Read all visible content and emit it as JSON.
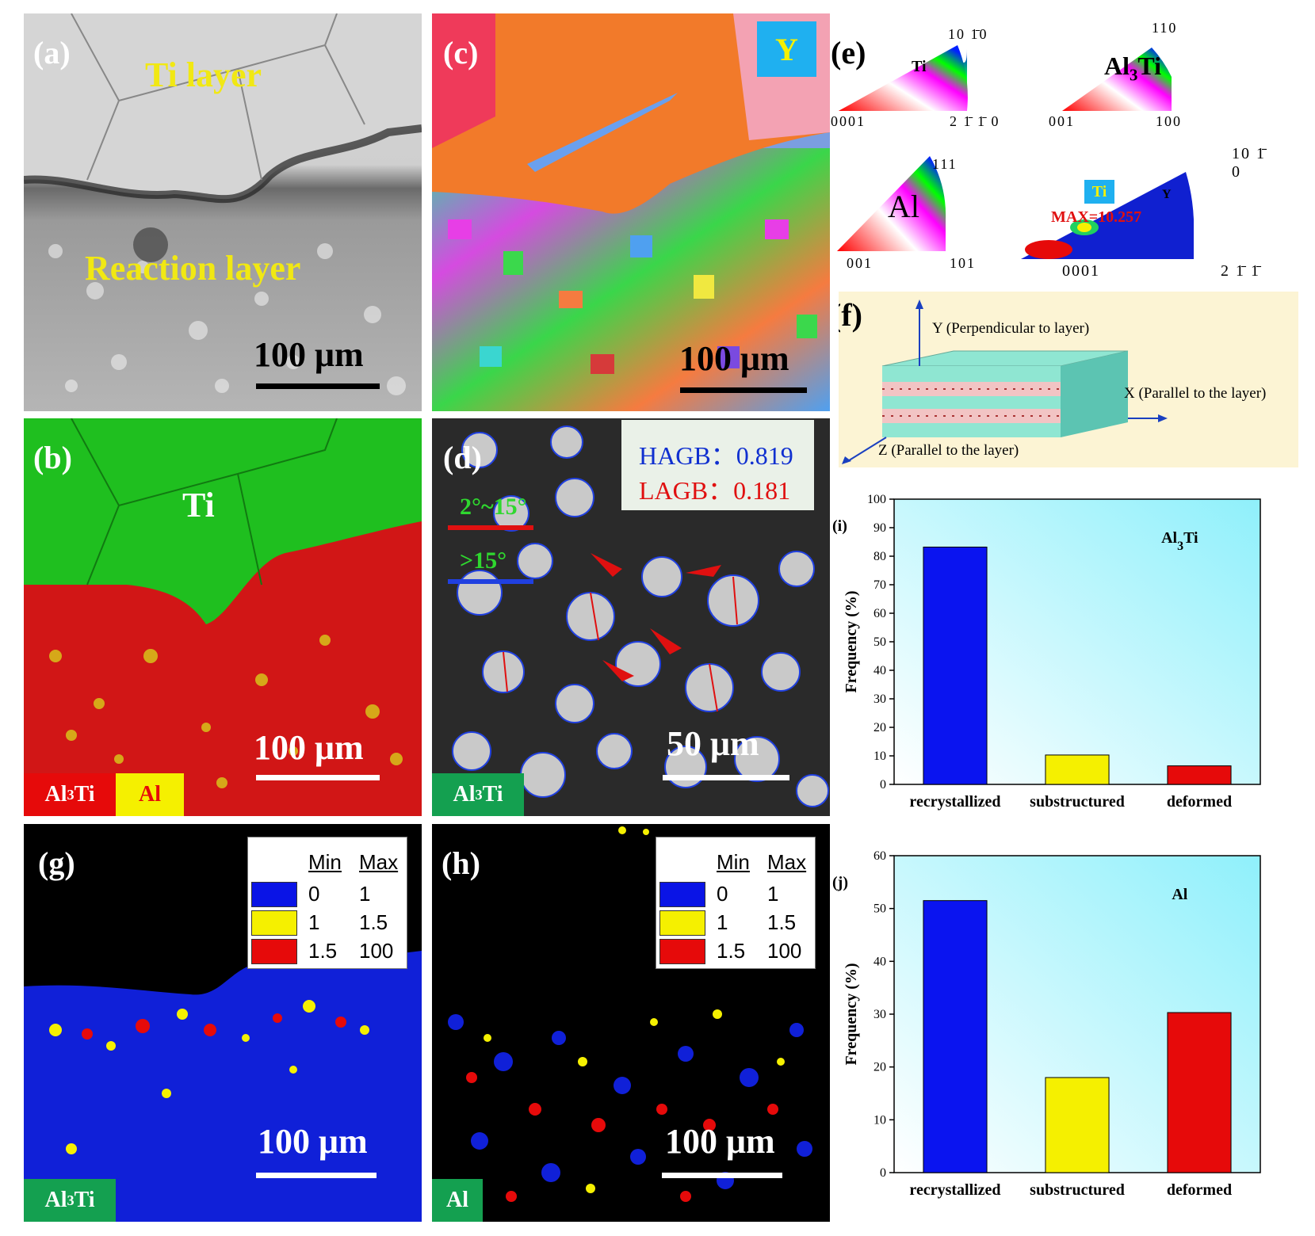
{
  "panels": {
    "a": {
      "label": "(a)",
      "ti_layer": "Ti layer",
      "reaction_layer": "Reaction layer",
      "scale": "100 μm"
    },
    "b": {
      "label": "(b)",
      "ti": "Ti",
      "tag1": "Al3Ti",
      "tag2": "Al",
      "scale": "100 μm"
    },
    "c": {
      "label": "(c)",
      "axis_tag": "Y",
      "scale": "100 μm"
    },
    "d": {
      "label": "(d)",
      "hagb_label": "HAGB：",
      "hagb_value": "0.819",
      "lagb_label": "LAGB：",
      "lagb_value": "0.181",
      "line1": "2°~15°",
      "line2": ">15°",
      "scale": "50 μm",
      "tag": "Al3Ti"
    },
    "e": {
      "label": "(e)",
      "ti_name": "Ti",
      "al3ti_name": "Al3Ti",
      "al_name": "Al",
      "ti_top": "10 1̄0",
      "ti_left": "0001",
      "ti_right": "2 1̄ 1̄ 0",
      "al3ti_top": "110",
      "al3ti_left": "001",
      "al3ti_right": "100",
      "al_top": "111",
      "al_left": "001",
      "al_right": "101",
      "pf_tag": "Ti",
      "pf_axis": "Y",
      "pf_max": "MAX=10.257",
      "pf_top": "10 1̄ 0",
      "pf_left": "0001",
      "pf_right": "2 1̄ 1̄ 0"
    },
    "f": {
      "label": "(f)",
      "y_axis": "Y (Perpendicular to layer)",
      "x_axis": "X (Parallel to the layer)",
      "z_axis": "Z (Parallel to the layer)"
    },
    "g": {
      "label": "(g)",
      "scale": "100 μm",
      "tag": "Al3Ti"
    },
    "h": {
      "label": "(h)",
      "scale": "100 μm",
      "tag": "Al"
    },
    "legend": {
      "min": "Min",
      "max": "Max",
      "rows": [
        {
          "min": "0",
          "max": "1",
          "color": "#0a14e6"
        },
        {
          "min": "1",
          "max": "1.5",
          "color": "#f5f000"
        },
        {
          "min": "1.5",
          "max": "100",
          "color": "#e60a0a"
        }
      ]
    }
  },
  "chart_data": [
    {
      "type": "bar",
      "panel_label": "(i)",
      "title": "Al3Ti",
      "categories": [
        "recrystallized",
        "substructured",
        "deformed"
      ],
      "values": [
        83.2,
        10.3,
        6.5
      ],
      "colors": [
        "#0a14f0",
        "#f5f000",
        "#e60a0a"
      ],
      "ylabel": "Frequency (%)",
      "ylim": [
        0,
        100
      ],
      "yticks": [
        0,
        10,
        20,
        30,
        40,
        50,
        60,
        70,
        80,
        90,
        100
      ]
    },
    {
      "type": "bar",
      "panel_label": "(j)",
      "title": "Al",
      "categories": [
        "recrystallized",
        "substructured",
        "deformed"
      ],
      "values": [
        51.5,
        18.0,
        30.3
      ],
      "colors": [
        "#0a14f0",
        "#f5f000",
        "#e60a0a"
      ],
      "ylabel": "Frequency (%)",
      "ylim": [
        0,
        60
      ],
      "yticks": [
        0,
        10,
        20,
        30,
        40,
        50,
        60
      ]
    }
  ]
}
